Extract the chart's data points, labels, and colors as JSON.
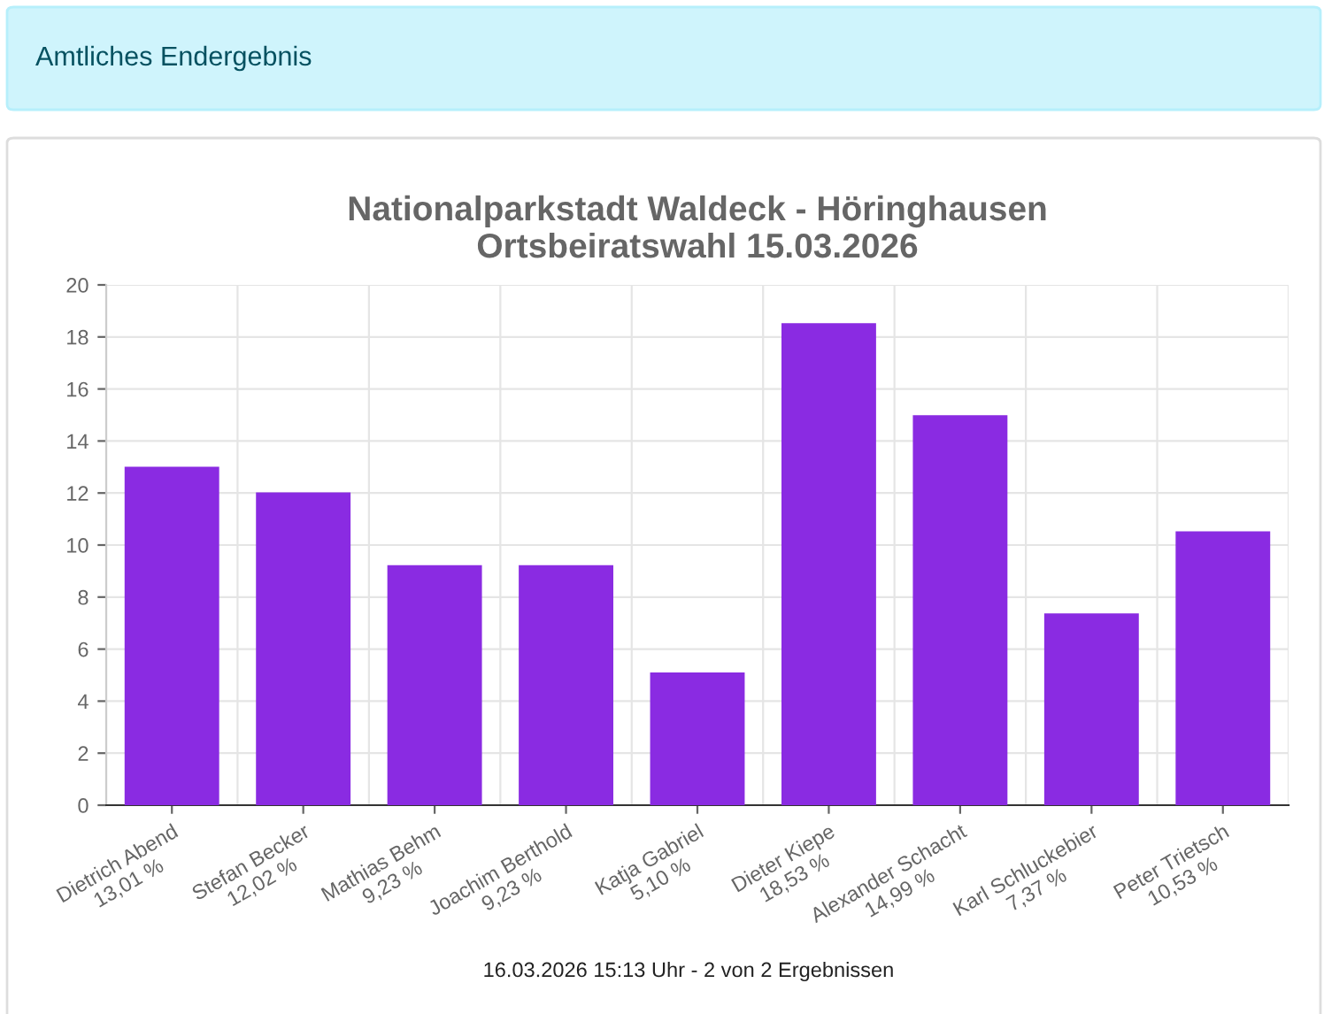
{
  "chart_data": {
    "type": "bar",
    "title": "Nationalparkstadt Waldeck - Höringhausen\nOrtsbeiratswahl 15.03.2026",
    "categories": [
      "Dietrich Abend\n13,01 %",
      "Stefan Becker\n12,02 %",
      "Mathias Behm\n9,23 %",
      "Joachim Berthold\n9,23 %",
      "Katja Gabriel\n5,10 %",
      "Dieter Kiepe\n18,53 %",
      "Alexander Schacht\n14,99 %",
      "Karl Schluckebier\n7,37 %",
      "Peter Trietsch\n10,53 %"
    ],
    "values": [
      13.01,
      12.02,
      9.23,
      9.23,
      5.1,
      18.53,
      14.99,
      7.37,
      10.53
    ],
    "color": "#8a2be2",
    "ylim": [
      0,
      20
    ],
    "yticks": [
      0,
      2,
      4,
      6,
      8,
      10,
      12,
      14,
      16,
      18,
      20
    ],
    "grid": true,
    "annotations": [
      "Amtliches Endergebnis",
      "16.03.2026 15:13 Uhr - 2 von 2 Ergebnissen"
    ]
  }
}
